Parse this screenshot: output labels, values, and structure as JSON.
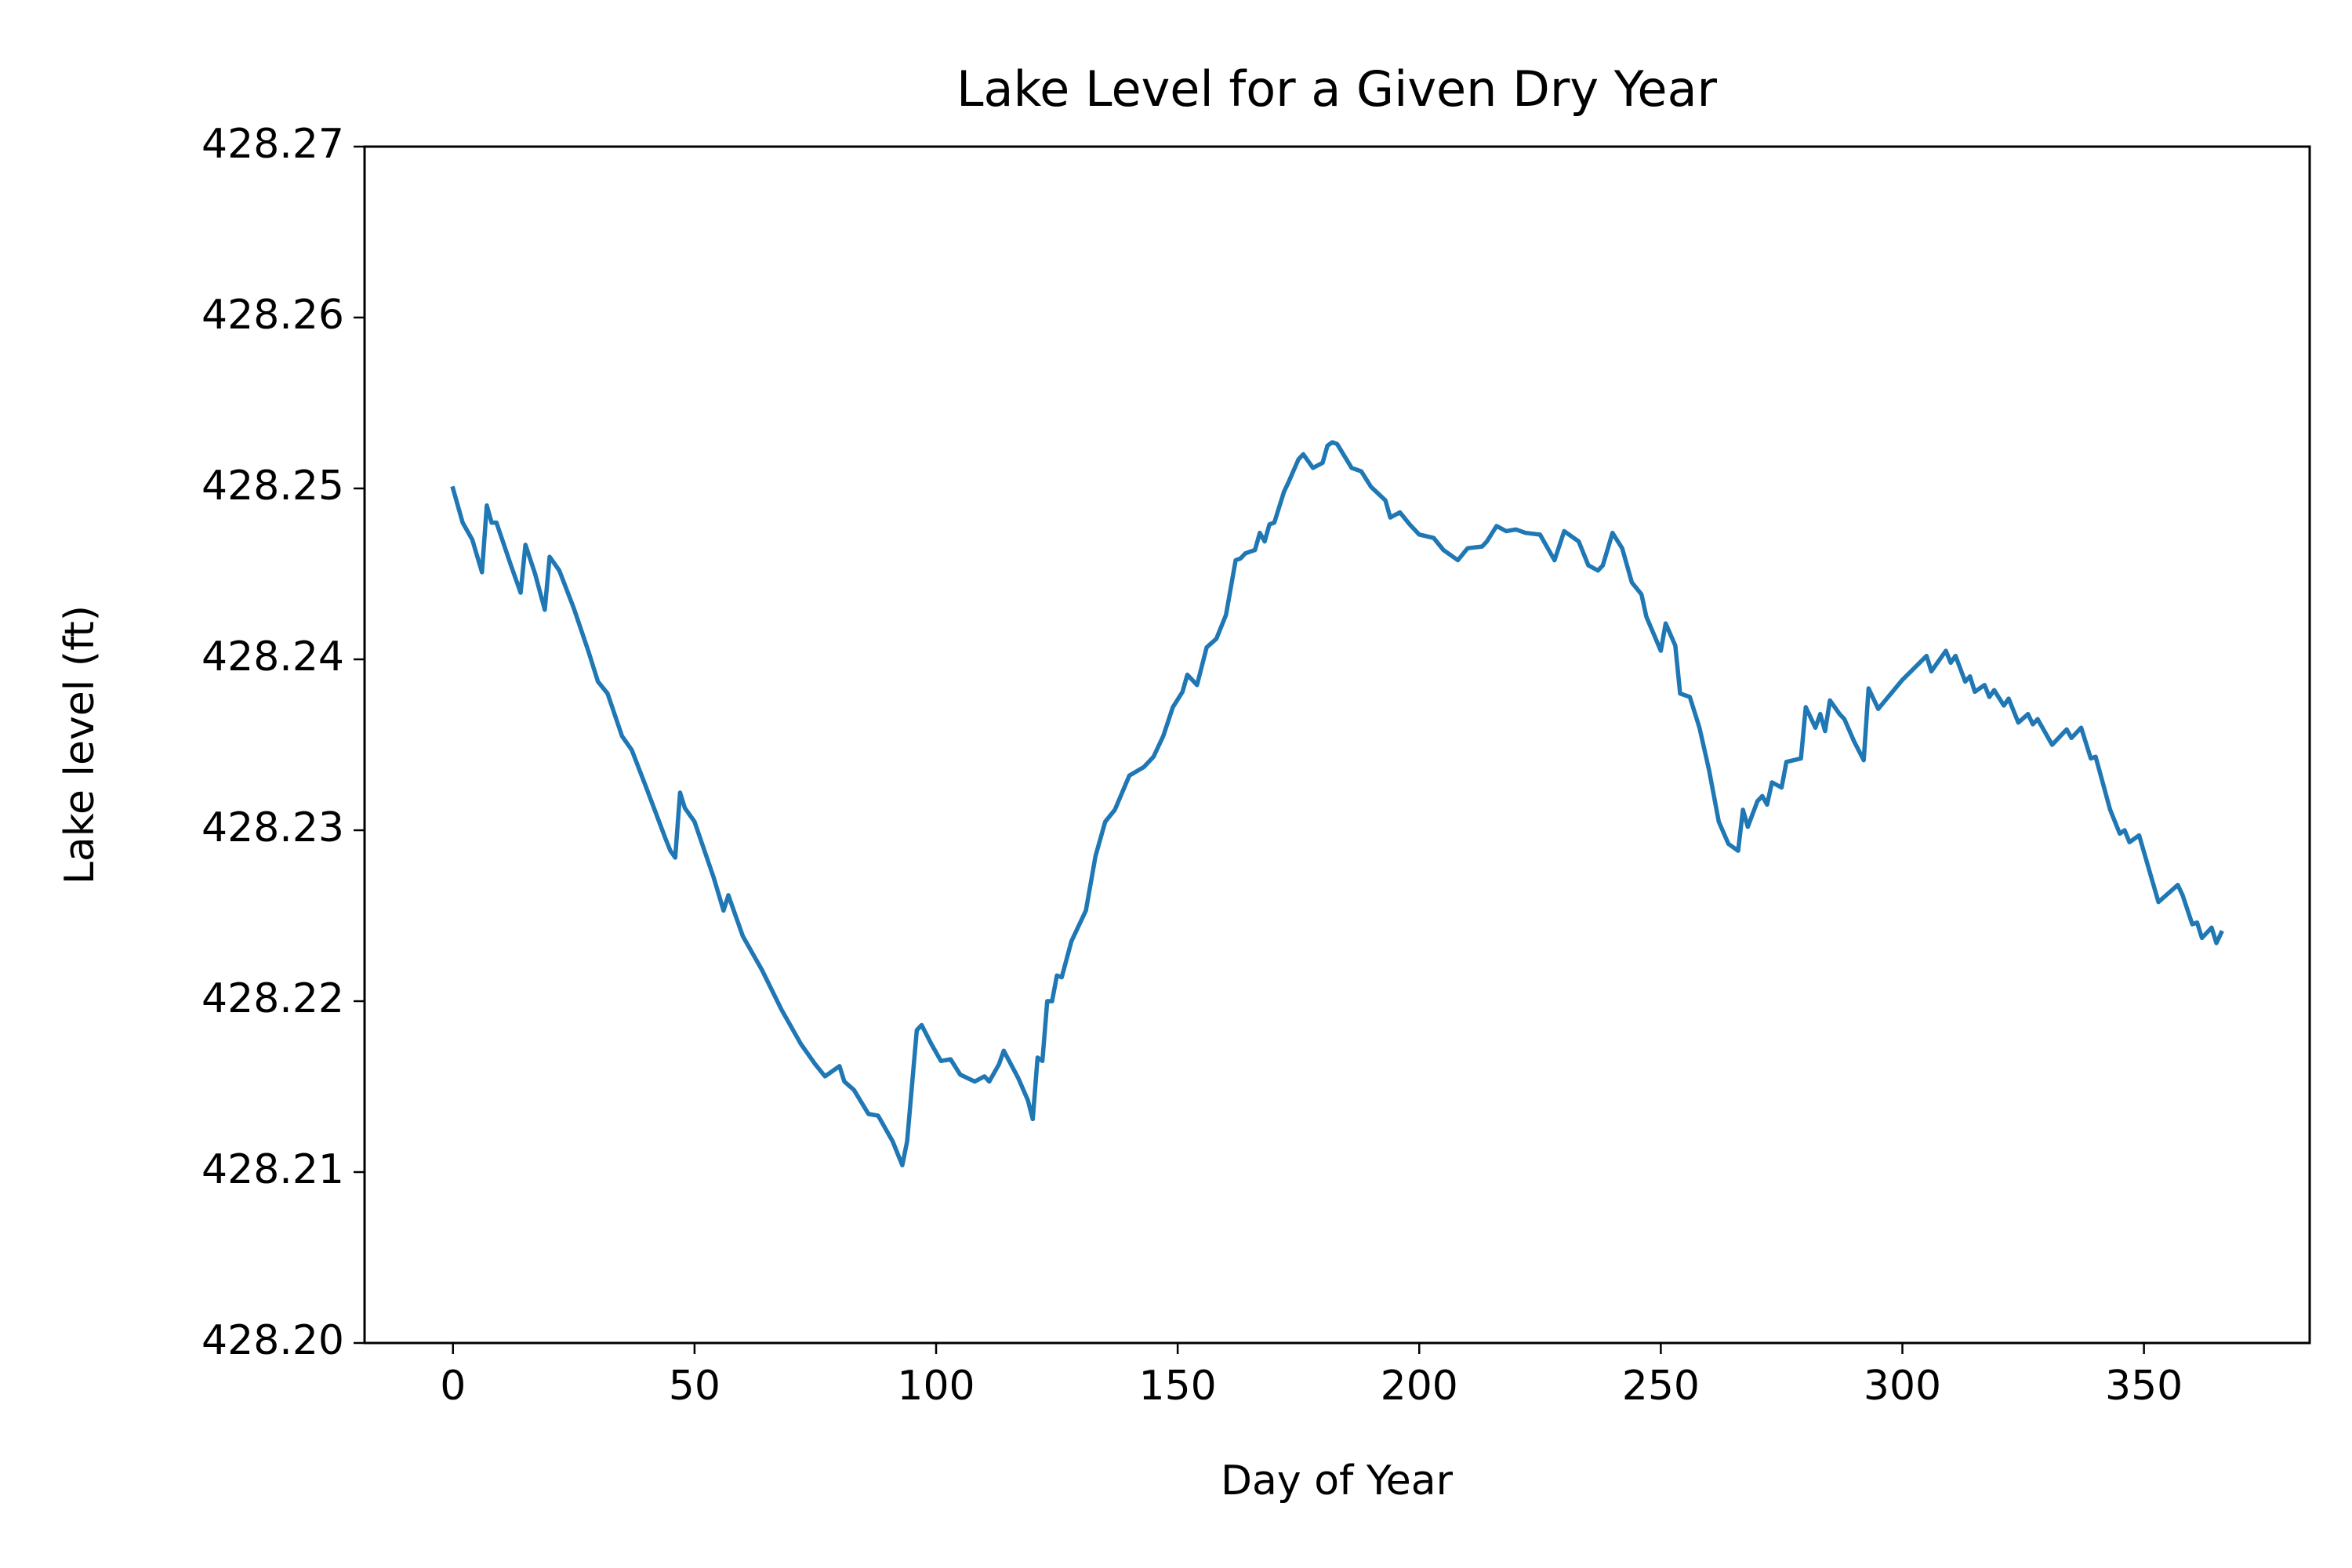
{
  "chart_data": {
    "type": "line",
    "title": "Lake Level for a Given Dry Year",
    "x_label": "Day of Year",
    "y_label": "Lake level (ft)",
    "color": "#1f77b4",
    "x": [
      0,
      2,
      4,
      6,
      7,
      8,
      9,
      12,
      14,
      15,
      17,
      19,
      20,
      22,
      25,
      28,
      30,
      32,
      35,
      37,
      40,
      44,
      45,
      46,
      47,
      48,
      50,
      54,
      56,
      57,
      60,
      64,
      68,
      72,
      75,
      77,
      80,
      81,
      83,
      86,
      88,
      91,
      93,
      94,
      96,
      97,
      99,
      101,
      103,
      105,
      108,
      110,
      111,
      113,
      114,
      117,
      119,
      120,
      121,
      122,
      123,
      124,
      125,
      126,
      128,
      131,
      133,
      135,
      137,
      140,
      143,
      145,
      147,
      149,
      151,
      152,
      154,
      156,
      158,
      160,
      162,
      163,
      164,
      166,
      167,
      168,
      169,
      170,
      172,
      173,
      175,
      176,
      178,
      180,
      181,
      182,
      183,
      186,
      188,
      190,
      193,
      194,
      196,
      198,
      200,
      203,
      205,
      208,
      210,
      213,
      214,
      216,
      218,
      220,
      222,
      225,
      228,
      230,
      233,
      235,
      237,
      238,
      240,
      242,
      244,
      246,
      247,
      250,
      251,
      253,
      254,
      256,
      258,
      260,
      262,
      264,
      266,
      267,
      268,
      270,
      271,
      272,
      273,
      275,
      276,
      279,
      280,
      282,
      283,
      284,
      285,
      287,
      288,
      290,
      292,
      293,
      295,
      300,
      305,
      306,
      309,
      310,
      311,
      313,
      314,
      315,
      317,
      318,
      319,
      321,
      322,
      324,
      326,
      327,
      328,
      331,
      334,
      335,
      337,
      339,
      340,
      343,
      345,
      346,
      347,
      349,
      353,
      357,
      358,
      360,
      361,
      362,
      364,
      365,
      366
    ],
    "values": [
      428.25,
      428.248,
      428.247,
      428.2451,
      428.249,
      428.248,
      428.248,
      428.2455,
      428.2439,
      428.2467,
      428.245,
      428.2429,
      428.246,
      428.2452,
      428.243,
      428.2405,
      428.2387,
      428.238,
      428.2355,
      428.2347,
      428.2325,
      428.2295,
      428.2288,
      428.2284,
      428.2322,
      428.2313,
      428.2305,
      428.2272,
      428.2253,
      428.2262,
      428.2238,
      428.2218,
      428.2195,
      428.2175,
      428.2163,
      428.2156,
      428.2162,
      428.2153,
      428.2148,
      428.2134,
      428.2133,
      428.2118,
      428.2104,
      428.2118,
      428.2183,
      428.2186,
      428.2175,
      428.2165,
      428.2166,
      428.2157,
      428.2153,
      428.2156,
      428.2153,
      428.2163,
      428.2171,
      428.2155,
      428.2142,
      428.2131,
      428.2167,
      428.2165,
      428.22,
      428.22,
      428.2215,
      428.2214,
      428.2235,
      428.2253,
      428.2285,
      428.2305,
      428.2312,
      428.2332,
      428.2337,
      428.2343,
      428.2355,
      428.2372,
      428.2381,
      428.2391,
      428.2385,
      428.2407,
      428.2412,
      428.2426,
      428.2458,
      428.2459,
      428.2462,
      428.2464,
      428.2474,
      428.2469,
      428.2479,
      428.248,
      428.2498,
      428.2504,
      428.2517,
      428.252,
      428.2512,
      428.2515,
      428.2525,
      428.2527,
      428.2526,
      428.2512,
      428.251,
      428.2501,
      428.2493,
      428.2483,
      428.2486,
      428.2479,
      428.2473,
      428.2471,
      428.2464,
      428.2458,
      428.2465,
      428.2466,
      428.2469,
      428.2478,
      428.2475,
      428.2476,
      428.2474,
      428.2473,
      428.2458,
      428.2475,
      428.2469,
      428.2455,
      428.2452,
      428.2455,
      428.2474,
      428.2465,
      428.2445,
      428.2438,
      428.2425,
      428.2405,
      428.2421,
      428.2408,
      428.238,
      428.2378,
      428.236,
      428.2335,
      428.2305,
      428.2292,
      428.2288,
      428.2312,
      428.2302,
      428.2317,
      428.232,
      428.2315,
      428.2328,
      428.2325,
      428.234,
      428.2342,
      428.2372,
      428.236,
      428.2368,
      428.2358,
      428.2376,
      428.2368,
      428.2365,
      428.2352,
      428.2341,
      428.2383,
      428.2371,
      428.2388,
      428.2402,
      428.2393,
      428.2405,
      428.2398,
      428.2402,
      428.2387,
      428.239,
      428.2381,
      428.2385,
      428.2378,
      428.2382,
      428.2373,
      428.2377,
      428.2363,
      428.2368,
      428.2362,
      428.2365,
      428.235,
      428.2359,
      428.2354,
      428.236,
      428.2342,
      428.2343,
      428.2312,
      428.2298,
      428.23,
      428.2293,
      428.2297,
      428.2258,
      428.2268,
      428.2262,
      428.2245,
      428.2246,
      428.2237,
      428.2243,
      428.2234,
      428.224
    ],
    "xlim": [
      -18.3,
      384.3
    ],
    "xticks": [
      0,
      50,
      100,
      150,
      200,
      250,
      300,
      350
    ],
    "ylim": [
      428.2,
      428.27
    ],
    "yticks": [
      {
        "value": 428.2,
        "label": "428.20"
      },
      428.21,
      428.22,
      428.23,
      428.24,
      428.25,
      428.26,
      428.27
    ]
  }
}
